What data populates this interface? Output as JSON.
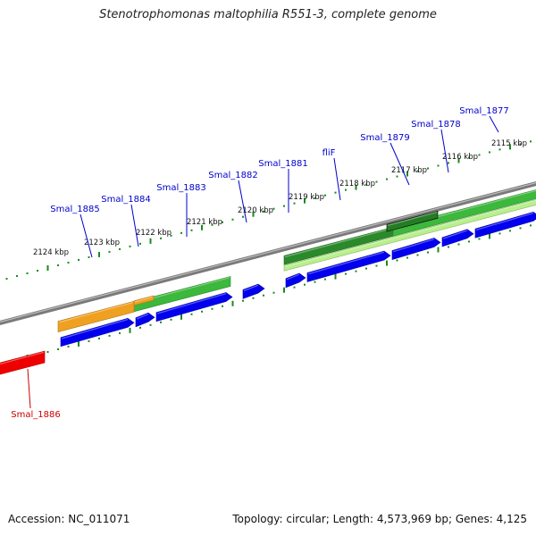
{
  "title": "Stenotrophomonas maltophilia R551-3, complete genome",
  "accession": "Accession: NC_011071",
  "summary": "Topology: circular; Length: 4,573,969 bp; Genes: 4,125",
  "ruler_labels": [
    "2115 kbp",
    "2116 kbp",
    "2117 kbp",
    "2118 kbp",
    "2119 kbp",
    "2120 kbp",
    "2121 kbp",
    "2122 kbp",
    "2123 kbp",
    "2124 kbp"
  ],
  "gene_labels": [
    "Smal_1877",
    "Smal_1878",
    "Smal_1879",
    "fliF",
    "Smal_1881",
    "Smal_1882",
    "Smal_1883",
    "Smal_1884",
    "Smal_1885",
    "Smal_1886"
  ],
  "colors": {
    "gene_label": "#0000cc",
    "highlight_label": "#cc0000",
    "forward_cds": "#0000ee",
    "backbone": "#888888",
    "tick": "#1a8a1a",
    "feature_green": "#3cb83c",
    "feature_dark_green": "#2a8a2a",
    "feature_lime": "#b8f08c",
    "feature_orange": "#f0a020",
    "feature_red": "#ee0000"
  }
}
